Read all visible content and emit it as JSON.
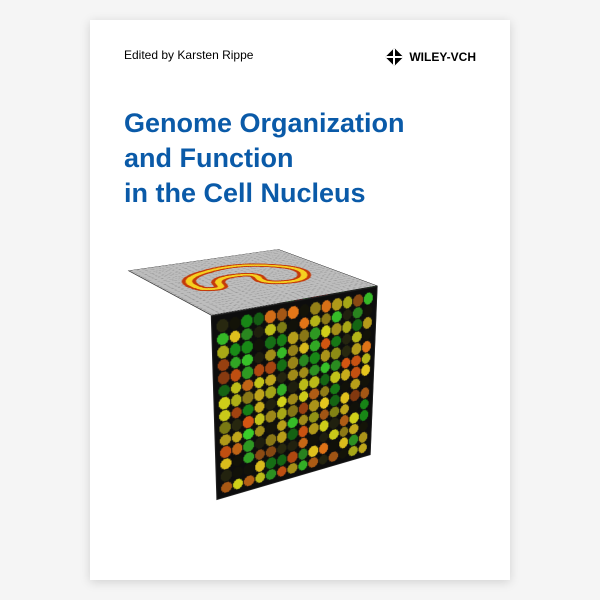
{
  "header": {
    "editor_prefix": "Edited by",
    "editor_name": "Karsten Rippe",
    "publisher": "WILEY-VCH"
  },
  "title": {
    "line1": "Genome Organization",
    "line2": "and Function",
    "line3": "in the Cell Nucleus",
    "color": "#0a5aa8",
    "fontsize": 27
  },
  "cube": {
    "front": {
      "type": "microarray-dots",
      "grid": 14,
      "background": "#0d0d0d",
      "palette": [
        "#e8c81e",
        "#d4d41a",
        "#b8e024",
        "#3bcf2b",
        "#1a9918",
        "#e87818",
        "#d85812",
        "#8a6a12",
        "#2a2a10",
        "#141408"
      ]
    },
    "right": {
      "type": "heatmap-stripes",
      "cols": 11,
      "palette_dark": [
        "#051005",
        "#0a1a0a",
        "#061406"
      ],
      "palette_bright": [
        "#19c819",
        "#e02418",
        "#c81212",
        "#1fa81f",
        "#167816"
      ]
    },
    "top": {
      "type": "afm-surface",
      "background": "#bdbdbd",
      "noise_color": "#9a9a9a",
      "worm_colors": {
        "outer": "#c43a0a",
        "inner": "#f5d020"
      }
    }
  },
  "layout": {
    "cover_w": 420,
    "cover_h": 560,
    "background": "#ffffff"
  }
}
